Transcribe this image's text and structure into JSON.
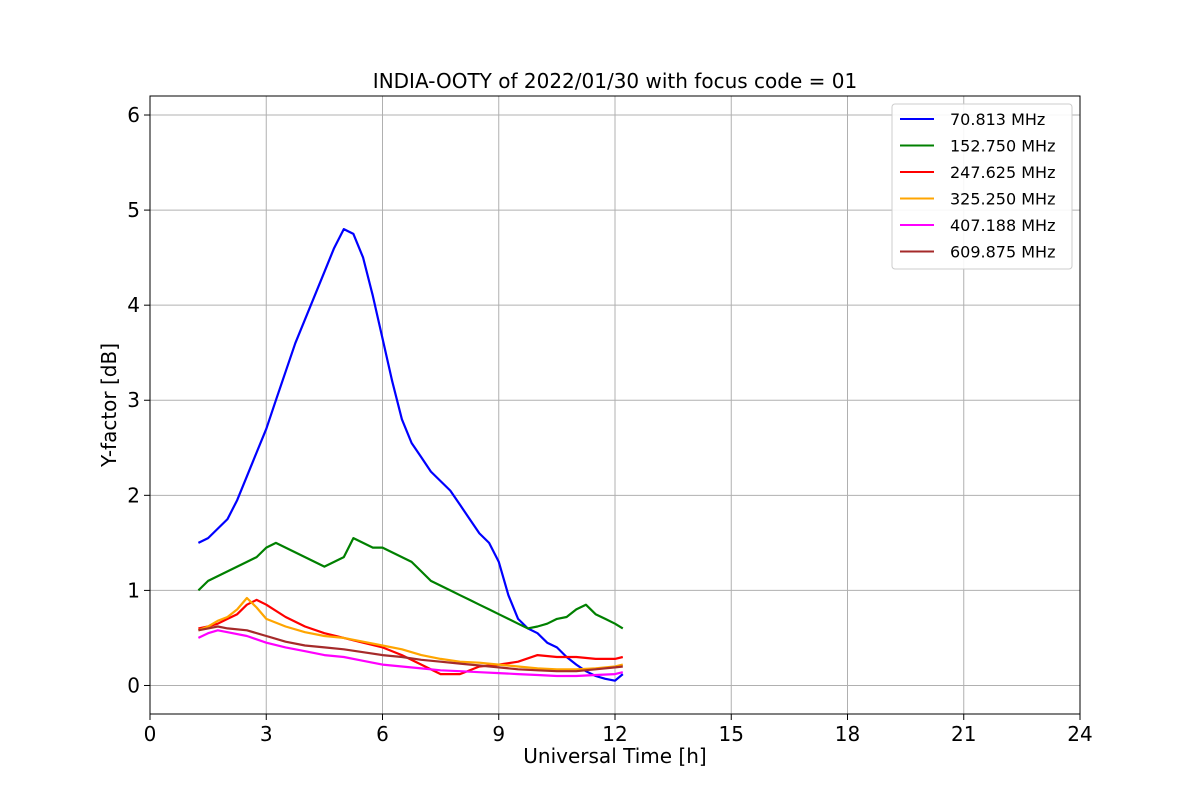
{
  "chart_data": {
    "type": "line",
    "title": "INDIA-OOTY of 2022/01/30 with focus code = 01",
    "xlabel": "Universal Time [h]",
    "ylabel": "Y-factor [dB]",
    "xlim": [
      0,
      24
    ],
    "ylim": [
      -0.3,
      6.2
    ],
    "xticks": [
      0,
      3,
      6,
      9,
      12,
      15,
      18,
      21,
      24
    ],
    "yticks": [
      0,
      1,
      2,
      3,
      4,
      5,
      6
    ],
    "grid": true,
    "legend_position": "top-right",
    "series": [
      {
        "name": "70.813 MHz",
        "color": "#0000ff",
        "x": [
          1.25,
          1.5,
          1.75,
          2.0,
          2.25,
          2.5,
          2.75,
          3.0,
          3.25,
          3.5,
          3.75,
          4.0,
          4.25,
          4.5,
          4.75,
          5.0,
          5.25,
          5.5,
          5.75,
          6.0,
          6.25,
          6.5,
          6.75,
          7.0,
          7.25,
          7.5,
          7.75,
          8.0,
          8.25,
          8.5,
          8.75,
          9.0,
          9.25,
          9.5,
          9.75,
          10.0,
          10.25,
          10.5,
          10.75,
          11.0,
          11.25,
          11.5,
          11.75,
          12.0,
          12.2
        ],
        "y": [
          1.5,
          1.55,
          1.65,
          1.75,
          1.95,
          2.2,
          2.45,
          2.7,
          3.0,
          3.3,
          3.6,
          3.85,
          4.1,
          4.35,
          4.6,
          4.8,
          4.75,
          4.5,
          4.1,
          3.65,
          3.2,
          2.8,
          2.55,
          2.4,
          2.25,
          2.15,
          2.05,
          1.9,
          1.75,
          1.6,
          1.5,
          1.3,
          0.95,
          0.7,
          0.6,
          0.55,
          0.45,
          0.4,
          0.3,
          0.22,
          0.15,
          0.1,
          0.07,
          0.05,
          0.12
        ]
      },
      {
        "name": "152.750 MHz",
        "color": "#008000",
        "x": [
          1.25,
          1.5,
          1.75,
          2.0,
          2.25,
          2.5,
          2.75,
          3.0,
          3.25,
          3.5,
          3.75,
          4.0,
          4.25,
          4.5,
          4.75,
          5.0,
          5.25,
          5.5,
          5.75,
          6.0,
          6.25,
          6.5,
          6.75,
          7.0,
          7.25,
          7.5,
          7.75,
          8.0,
          8.25,
          8.5,
          8.75,
          9.0,
          9.25,
          9.5,
          9.75,
          10.0,
          10.25,
          10.5,
          10.75,
          11.0,
          11.25,
          11.5,
          11.75,
          12.0,
          12.2
        ],
        "y": [
          1.0,
          1.1,
          1.15,
          1.2,
          1.25,
          1.3,
          1.35,
          1.45,
          1.5,
          1.45,
          1.4,
          1.35,
          1.3,
          1.25,
          1.3,
          1.35,
          1.55,
          1.5,
          1.45,
          1.45,
          1.4,
          1.35,
          1.3,
          1.2,
          1.1,
          1.05,
          1.0,
          0.95,
          0.9,
          0.85,
          0.8,
          0.75,
          0.7,
          0.65,
          0.6,
          0.62,
          0.65,
          0.7,
          0.72,
          0.8,
          0.85,
          0.75,
          0.7,
          0.65,
          0.6
        ]
      },
      {
        "name": "247.625 MHz",
        "color": "#ff0000",
        "x": [
          1.25,
          1.5,
          1.75,
          2.0,
          2.25,
          2.5,
          2.75,
          3.0,
          3.5,
          4.0,
          4.5,
          5.0,
          5.5,
          6.0,
          6.5,
          7.0,
          7.5,
          8.0,
          8.5,
          9.0,
          9.5,
          10.0,
          10.5,
          11.0,
          11.5,
          12.0,
          12.2
        ],
        "y": [
          0.6,
          0.62,
          0.65,
          0.7,
          0.75,
          0.85,
          0.9,
          0.85,
          0.72,
          0.62,
          0.55,
          0.5,
          0.45,
          0.4,
          0.32,
          0.22,
          0.12,
          0.12,
          0.2,
          0.22,
          0.25,
          0.32,
          0.3,
          0.3,
          0.28,
          0.28,
          0.3
        ]
      },
      {
        "name": "325.250 MHz",
        "color": "#ffa500",
        "x": [
          1.25,
          1.5,
          1.75,
          2.0,
          2.25,
          2.5,
          2.75,
          3.0,
          3.5,
          4.0,
          4.5,
          5.0,
          5.5,
          6.0,
          6.5,
          7.0,
          7.5,
          8.0,
          8.5,
          9.0,
          9.5,
          10.0,
          10.5,
          11.0,
          11.5,
          12.0,
          12.2
        ],
        "y": [
          0.58,
          0.62,
          0.68,
          0.72,
          0.8,
          0.92,
          0.82,
          0.7,
          0.62,
          0.56,
          0.52,
          0.5,
          0.46,
          0.42,
          0.38,
          0.32,
          0.28,
          0.25,
          0.24,
          0.22,
          0.2,
          0.18,
          0.17,
          0.17,
          0.18,
          0.2,
          0.22
        ]
      },
      {
        "name": "407.188 MHz",
        "color": "#ff00ff",
        "x": [
          1.25,
          1.5,
          1.75,
          2.0,
          2.5,
          3.0,
          3.5,
          4.0,
          4.5,
          5.0,
          5.5,
          6.0,
          6.5,
          7.0,
          7.5,
          8.0,
          8.5,
          9.0,
          9.5,
          10.0,
          10.5,
          11.0,
          11.5,
          12.0,
          12.2
        ],
        "y": [
          0.5,
          0.55,
          0.58,
          0.56,
          0.52,
          0.45,
          0.4,
          0.36,
          0.32,
          0.3,
          0.26,
          0.22,
          0.2,
          0.18,
          0.16,
          0.15,
          0.14,
          0.13,
          0.12,
          0.11,
          0.1,
          0.1,
          0.11,
          0.12,
          0.14
        ]
      },
      {
        "name": "609.875 MHz",
        "color": "#a52a2a",
        "x": [
          1.25,
          1.5,
          1.75,
          2.0,
          2.5,
          3.0,
          3.5,
          4.0,
          4.5,
          5.0,
          5.5,
          6.0,
          6.5,
          7.0,
          7.5,
          8.0,
          8.5,
          9.0,
          9.5,
          10.0,
          10.5,
          11.0,
          11.5,
          12.0,
          12.2
        ],
        "y": [
          0.58,
          0.6,
          0.62,
          0.6,
          0.58,
          0.52,
          0.46,
          0.42,
          0.4,
          0.38,
          0.35,
          0.32,
          0.3,
          0.27,
          0.25,
          0.23,
          0.21,
          0.19,
          0.17,
          0.16,
          0.15,
          0.15,
          0.17,
          0.19,
          0.2
        ]
      }
    ]
  }
}
